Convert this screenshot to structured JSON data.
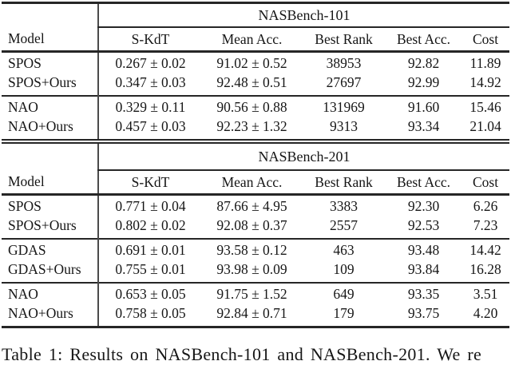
{
  "colors": {
    "text": "#161616",
    "rule": "#262626",
    "bar": "#4a4a4a",
    "background": "#ffffff"
  },
  "caption": "Table 1: Results on NASBench-101 and NASBench-201. We re",
  "tables": [
    {
      "benchmark": "NASBench-101",
      "columns": [
        "Model",
        "S-KdT",
        "Mean Acc.",
        "Best Rank",
        "Best Acc.",
        "Cost"
      ],
      "groups": [
        [
          [
            "SPOS",
            "0.267 ± 0.02",
            "91.02 ± 0.52",
            "38953",
            "92.82",
            "11.89"
          ],
          [
            "SPOS+Ours",
            "0.347 ± 0.03",
            "92.48 ± 0.51",
            "27697",
            "92.99",
            "14.92"
          ]
        ],
        [
          [
            "NAO",
            "0.329 ± 0.11",
            "90.56 ± 0.88",
            "131969",
            "91.60",
            "15.46"
          ],
          [
            "NAO+Ours",
            "0.457 ± 0.03",
            "92.23 ± 1.32",
            "9313",
            "93.34",
            "21.04"
          ]
        ]
      ]
    },
    {
      "benchmark": "NASBench-201",
      "columns": [
        "Model",
        "S-KdT",
        "Mean Acc.",
        "Best Rank",
        "Best Acc.",
        "Cost"
      ],
      "groups": [
        [
          [
            "SPOS",
            "0.771 ± 0.04",
            "87.66 ± 4.95",
            "3383",
            "92.30",
            "6.26"
          ],
          [
            "SPOS+Ours",
            "0.802 ± 0.02",
            "92.08 ± 0.37",
            "2557",
            "92.53",
            "7.23"
          ]
        ],
        [
          [
            "GDAS",
            "0.691 ± 0.01",
            "93.58 ± 0.12",
            "463",
            "93.48",
            "14.42"
          ],
          [
            "GDAS+Ours",
            "0.755 ± 0.01",
            "93.98 ± 0.09",
            "109",
            "93.84",
            "16.28"
          ]
        ],
        [
          [
            "NAO",
            "0.653 ± 0.05",
            "91.75 ± 1.52",
            "649",
            "93.35",
            "3.51"
          ],
          [
            "NAO+Ours",
            "0.758 ± 0.05",
            "92.84 ± 0.71",
            "179",
            "93.75",
            "4.20"
          ]
        ]
      ]
    }
  ]
}
